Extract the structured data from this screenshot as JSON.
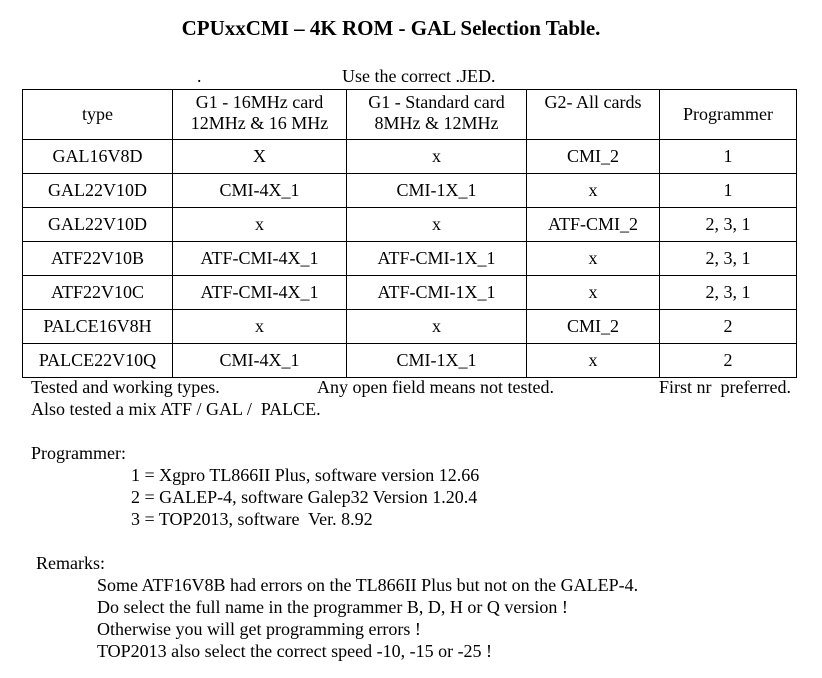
{
  "title": "CPUxxCMI – 4K ROM - GAL Selection Table.",
  "subtitle_dot": ".",
  "subtitle": "Use the correct .JED.",
  "table": {
    "headers": [
      [
        "type"
      ],
      [
        "G1 - 16MHz card",
        "12MHz & 16 MHz"
      ],
      [
        "G1 - Standard card",
        "8MHz & 12MHz"
      ],
      [
        "G2- All cards"
      ],
      [
        "Programmer"
      ]
    ],
    "rows": [
      [
        "GAL16V8D",
        "X",
        "x",
        "CMI_2",
        "1"
      ],
      [
        "GAL22V10D",
        "CMI-4X_1",
        "CMI-1X_1",
        "x",
        "1"
      ],
      [
        "GAL22V10D",
        "x",
        "x",
        "ATF-CMI_2",
        "2, 3, 1"
      ],
      [
        "ATF22V10B",
        "ATF-CMI-4X_1",
        "ATF-CMI-1X_1",
        "x",
        "2, 3, 1"
      ],
      [
        "ATF22V10C",
        "ATF-CMI-4X_1",
        "ATF-CMI-1X_1",
        "x",
        "2, 3, 1"
      ],
      [
        "PALCE16V8H",
        "x",
        "x",
        "CMI_2",
        "2"
      ],
      [
        "PALCE22V10Q",
        "CMI-4X_1",
        "CMI-1X_1",
        "x",
        "2"
      ]
    ]
  },
  "notes": {
    "tested": "Tested and working types.",
    "open_field": "Any open field means not tested.",
    "first_nr": "First nr  preferred.",
    "mix": "Also tested a mix ATF / GAL /  PALCE."
  },
  "programmer": {
    "heading": "Programmer:",
    "items": [
      "1 = Xgpro TL866II Plus, software version 12.66",
      "2 = GALEP-4, software Galep32 Version 1.20.4",
      "3 = TOP2013, software  Ver. 8.92"
    ]
  },
  "remarks": {
    "heading": "Remarks:",
    "items": [
      "Some ATF16V8B had errors on the TL866II Plus but not on the GALEP-4.",
      "Do select the full name in the programmer B, D, H or Q version !",
      "Otherwise you will get programming errors !",
      "TOP2013 also select the correct speed -10, -15 or -25 !"
    ]
  }
}
